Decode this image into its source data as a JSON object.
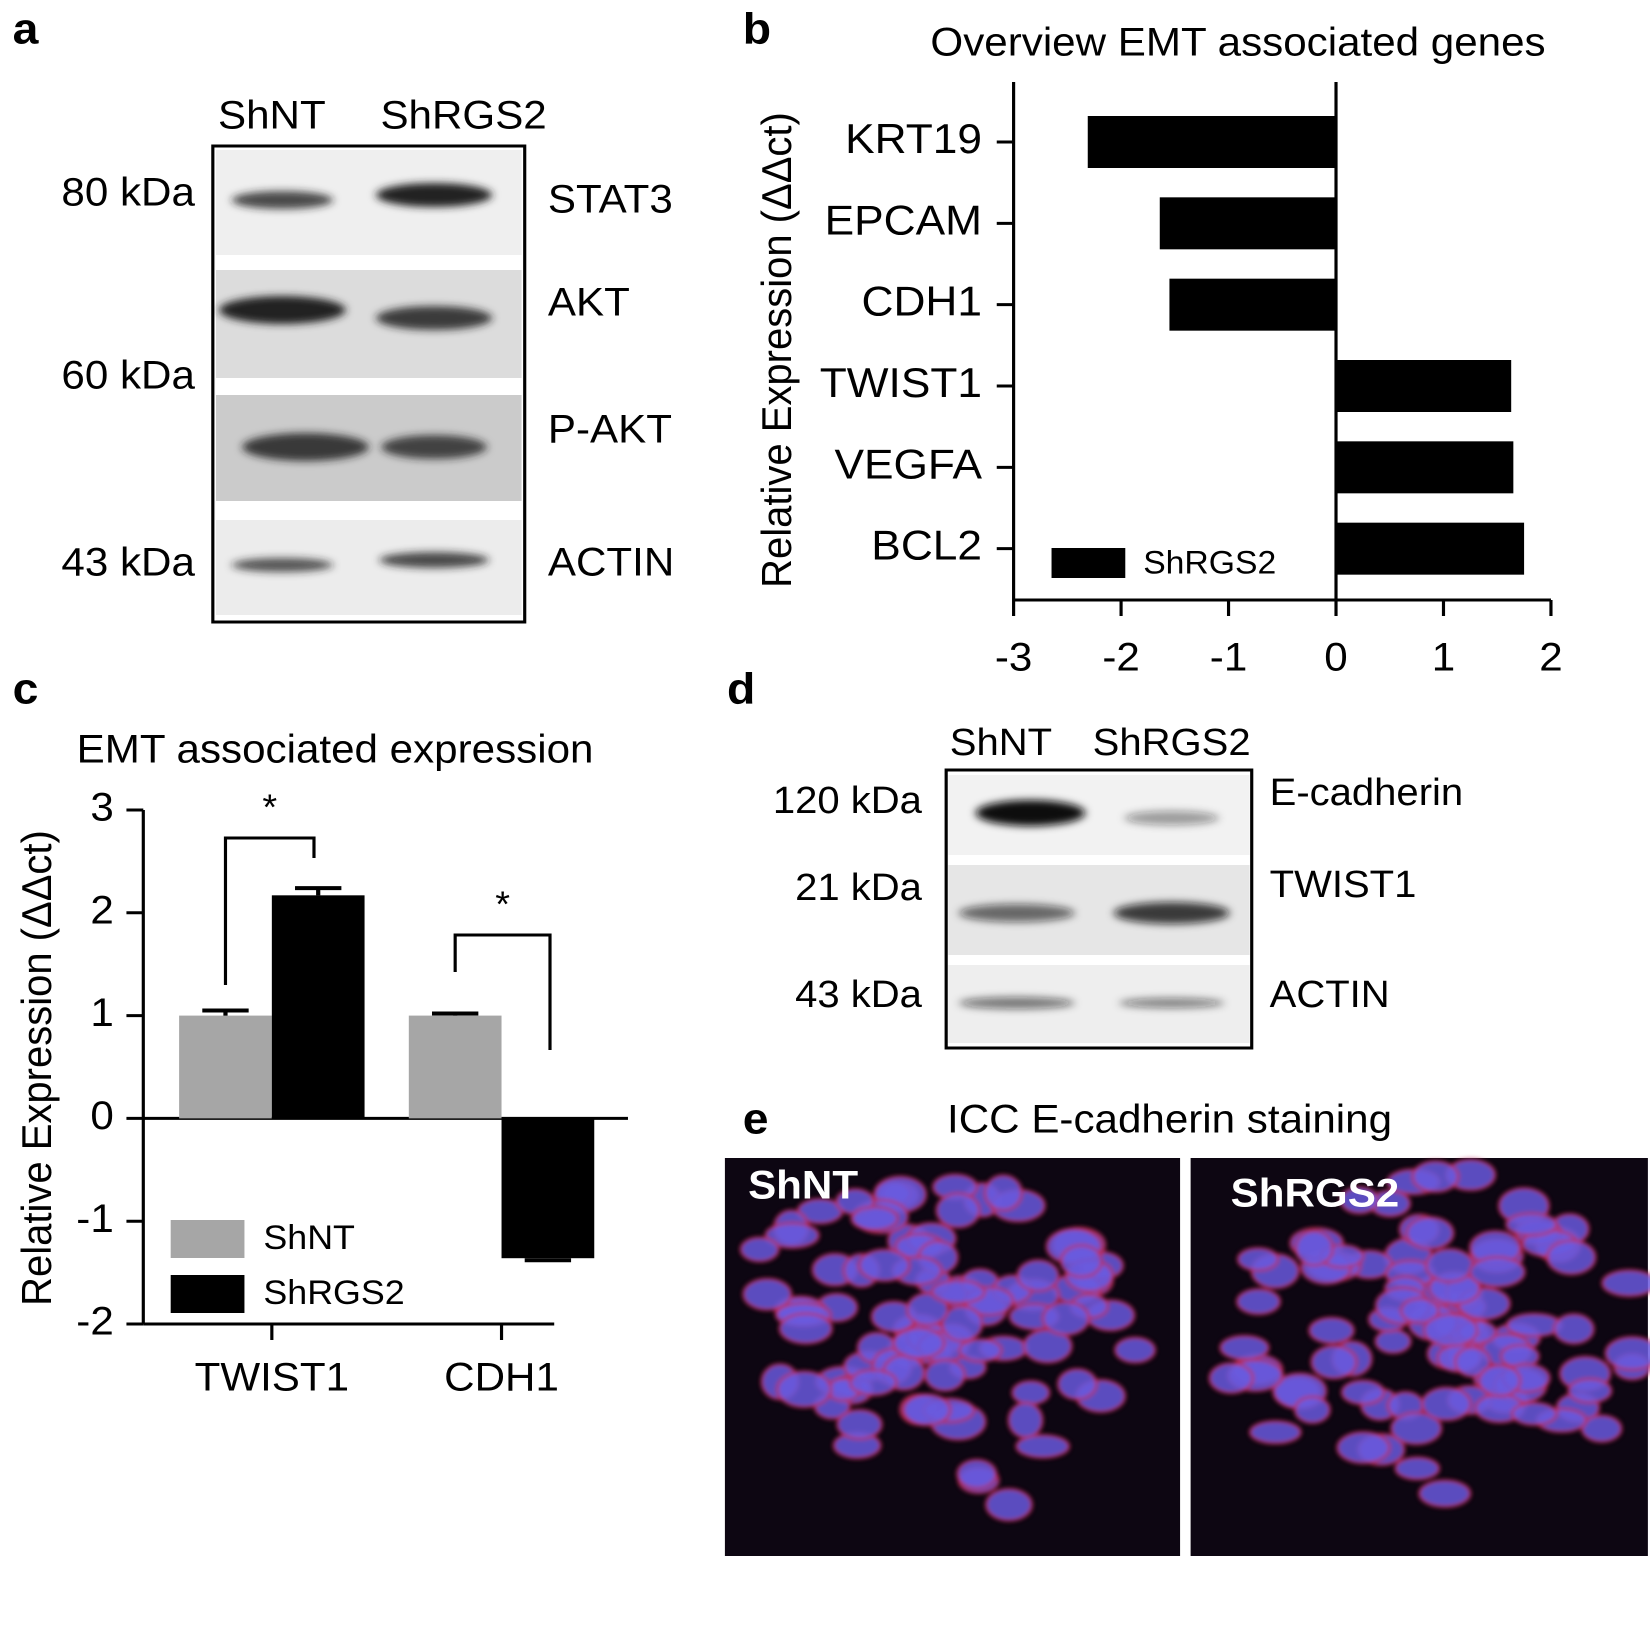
{
  "panel_labels": [
    "a",
    "b",
    "c",
    "d",
    "e"
  ],
  "blot_a": {
    "lanes": [
      "ShNT",
      "ShRGS2"
    ],
    "markers": [
      "80 kDa",
      "60 kDa",
      "43 kDa"
    ],
    "proteins": [
      "STAT3",
      "AKT",
      "P-AKT",
      "ACTIN"
    ]
  },
  "blot_d": {
    "lanes": [
      "ShNT",
      "ShRGS2"
    ],
    "markers": [
      "120 kDa",
      "21 kDa",
      "43 kDa"
    ],
    "proteins": [
      "E-cadherin",
      "TWIST1",
      "ACTIN"
    ]
  },
  "staining": {
    "title": "ICC E-cadherin staining",
    "labels": [
      "ShNT",
      "ShRGS2"
    ]
  },
  "chart_data": [
    {
      "type": "hbar",
      "title": "Overview EMT associated genes",
      "y_label": "Relative Expression (ΔΔct)",
      "categories": [
        "KRT19",
        "EPCAM",
        "CDH1",
        "TWIST1",
        "VEGFA",
        "BCL2"
      ],
      "series": [
        {
          "name": "ShRGS2",
          "color": "#000000",
          "values": [
            -2.31,
            -1.64,
            -1.55,
            1.63,
            1.65,
            1.75
          ]
        }
      ],
      "xlim": [
        -3,
        2
      ],
      "xticks": [
        -3,
        -2,
        -1,
        0,
        1,
        2
      ],
      "legend": "lower-left"
    },
    {
      "type": "bar",
      "title": "EMT associated expression",
      "y_label": "Relative Expression (ΔΔct)",
      "categories": [
        "TWIST1",
        "CDH1"
      ],
      "series": [
        {
          "name": "ShNT",
          "color": "#a6a6a6",
          "values": [
            1.0,
            1.0
          ],
          "errors": [
            0.05,
            0.02
          ]
        },
        {
          "name": "ShRGS2",
          "color": "#000000",
          "values": [
            2.17,
            -1.36
          ],
          "errors": [
            0.07,
            0.02
          ]
        }
      ],
      "ylim": [
        -2,
        3
      ],
      "yticks": [
        -2,
        -1,
        0,
        1,
        2,
        3
      ],
      "annotations": [
        "*",
        "*"
      ],
      "legend": "lower-left"
    }
  ]
}
